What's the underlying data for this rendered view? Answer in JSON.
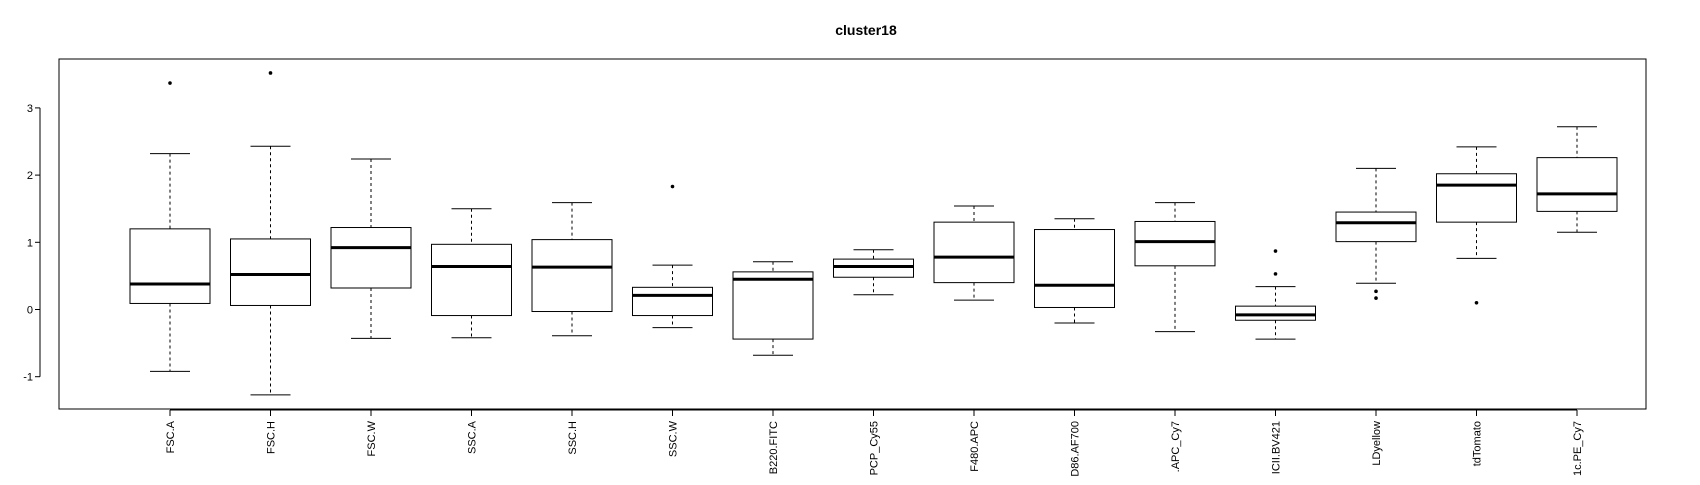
{
  "chart_data": {
    "type": "box",
    "title": "cluster18",
    "xlabel": "",
    "ylabel": "",
    "ylim": [
      -1.45,
      3.65
    ],
    "yticks": [
      -1,
      0,
      1,
      2,
      3
    ],
    "grid": false,
    "categories": [
      "FSC.A",
      "FSC.H",
      "FSC.W",
      "SSC.A",
      "SSC.H",
      "SSC.W",
      "B220.FITC",
      "PCP_Cy55",
      "F480.APC",
      "D86.AF700",
      ".APC_Cy7",
      "ICII.BV421",
      "LDyellow",
      "tdTomato",
      "1c.PE_Cy7"
    ],
    "boxes": [
      {
        "min": -0.92,
        "q1": 0.09,
        "median": 0.38,
        "q3": 1.2,
        "max": 2.32,
        "outliers": [
          3.37
        ]
      },
      {
        "min": -1.27,
        "q1": 0.06,
        "median": 0.52,
        "q3": 1.05,
        "max": 2.43,
        "outliers": [
          3.52
        ]
      },
      {
        "min": -0.43,
        "q1": 0.32,
        "median": 0.92,
        "q3": 1.22,
        "max": 2.24,
        "outliers": []
      },
      {
        "min": -0.42,
        "q1": -0.09,
        "median": 0.64,
        "q3": 0.97,
        "max": 1.5,
        "outliers": []
      },
      {
        "min": -0.39,
        "q1": -0.03,
        "median": 0.63,
        "q3": 1.04,
        "max": 1.59,
        "outliers": []
      },
      {
        "min": -0.27,
        "q1": -0.09,
        "median": 0.21,
        "q3": 0.33,
        "max": 0.66,
        "outliers": [
          1.83
        ]
      },
      {
        "min": -0.68,
        "q1": -0.44,
        "median": 0.45,
        "q3": 0.56,
        "max": 0.71,
        "outliers": []
      },
      {
        "min": 0.22,
        "q1": 0.48,
        "median": 0.64,
        "q3": 0.75,
        "max": 0.89,
        "outliers": []
      },
      {
        "min": 0.14,
        "q1": 0.4,
        "median": 0.78,
        "q3": 1.3,
        "max": 1.54,
        "outliers": []
      },
      {
        "min": -0.2,
        "q1": 0.03,
        "median": 0.36,
        "q3": 1.19,
        "max": 1.35,
        "outliers": []
      },
      {
        "min": -0.33,
        "q1": 0.65,
        "median": 1.01,
        "q3": 1.31,
        "max": 1.59,
        "outliers": []
      },
      {
        "min": -0.44,
        "q1": -0.16,
        "median": -0.08,
        "q3": 0.05,
        "max": 0.34,
        "outliers": [
          0.53,
          0.87
        ]
      },
      {
        "min": 0.39,
        "q1": 1.01,
        "median": 1.29,
        "q3": 1.45,
        "max": 2.1,
        "outliers": [
          0.17,
          0.27
        ]
      },
      {
        "min": 0.76,
        "q1": 1.3,
        "median": 1.85,
        "q3": 2.02,
        "max": 2.42,
        "outliers": [
          0.1
        ]
      },
      {
        "min": 1.15,
        "q1": 1.46,
        "median": 1.72,
        "q3": 2.26,
        "max": 2.72,
        "outliers": []
      }
    ]
  }
}
